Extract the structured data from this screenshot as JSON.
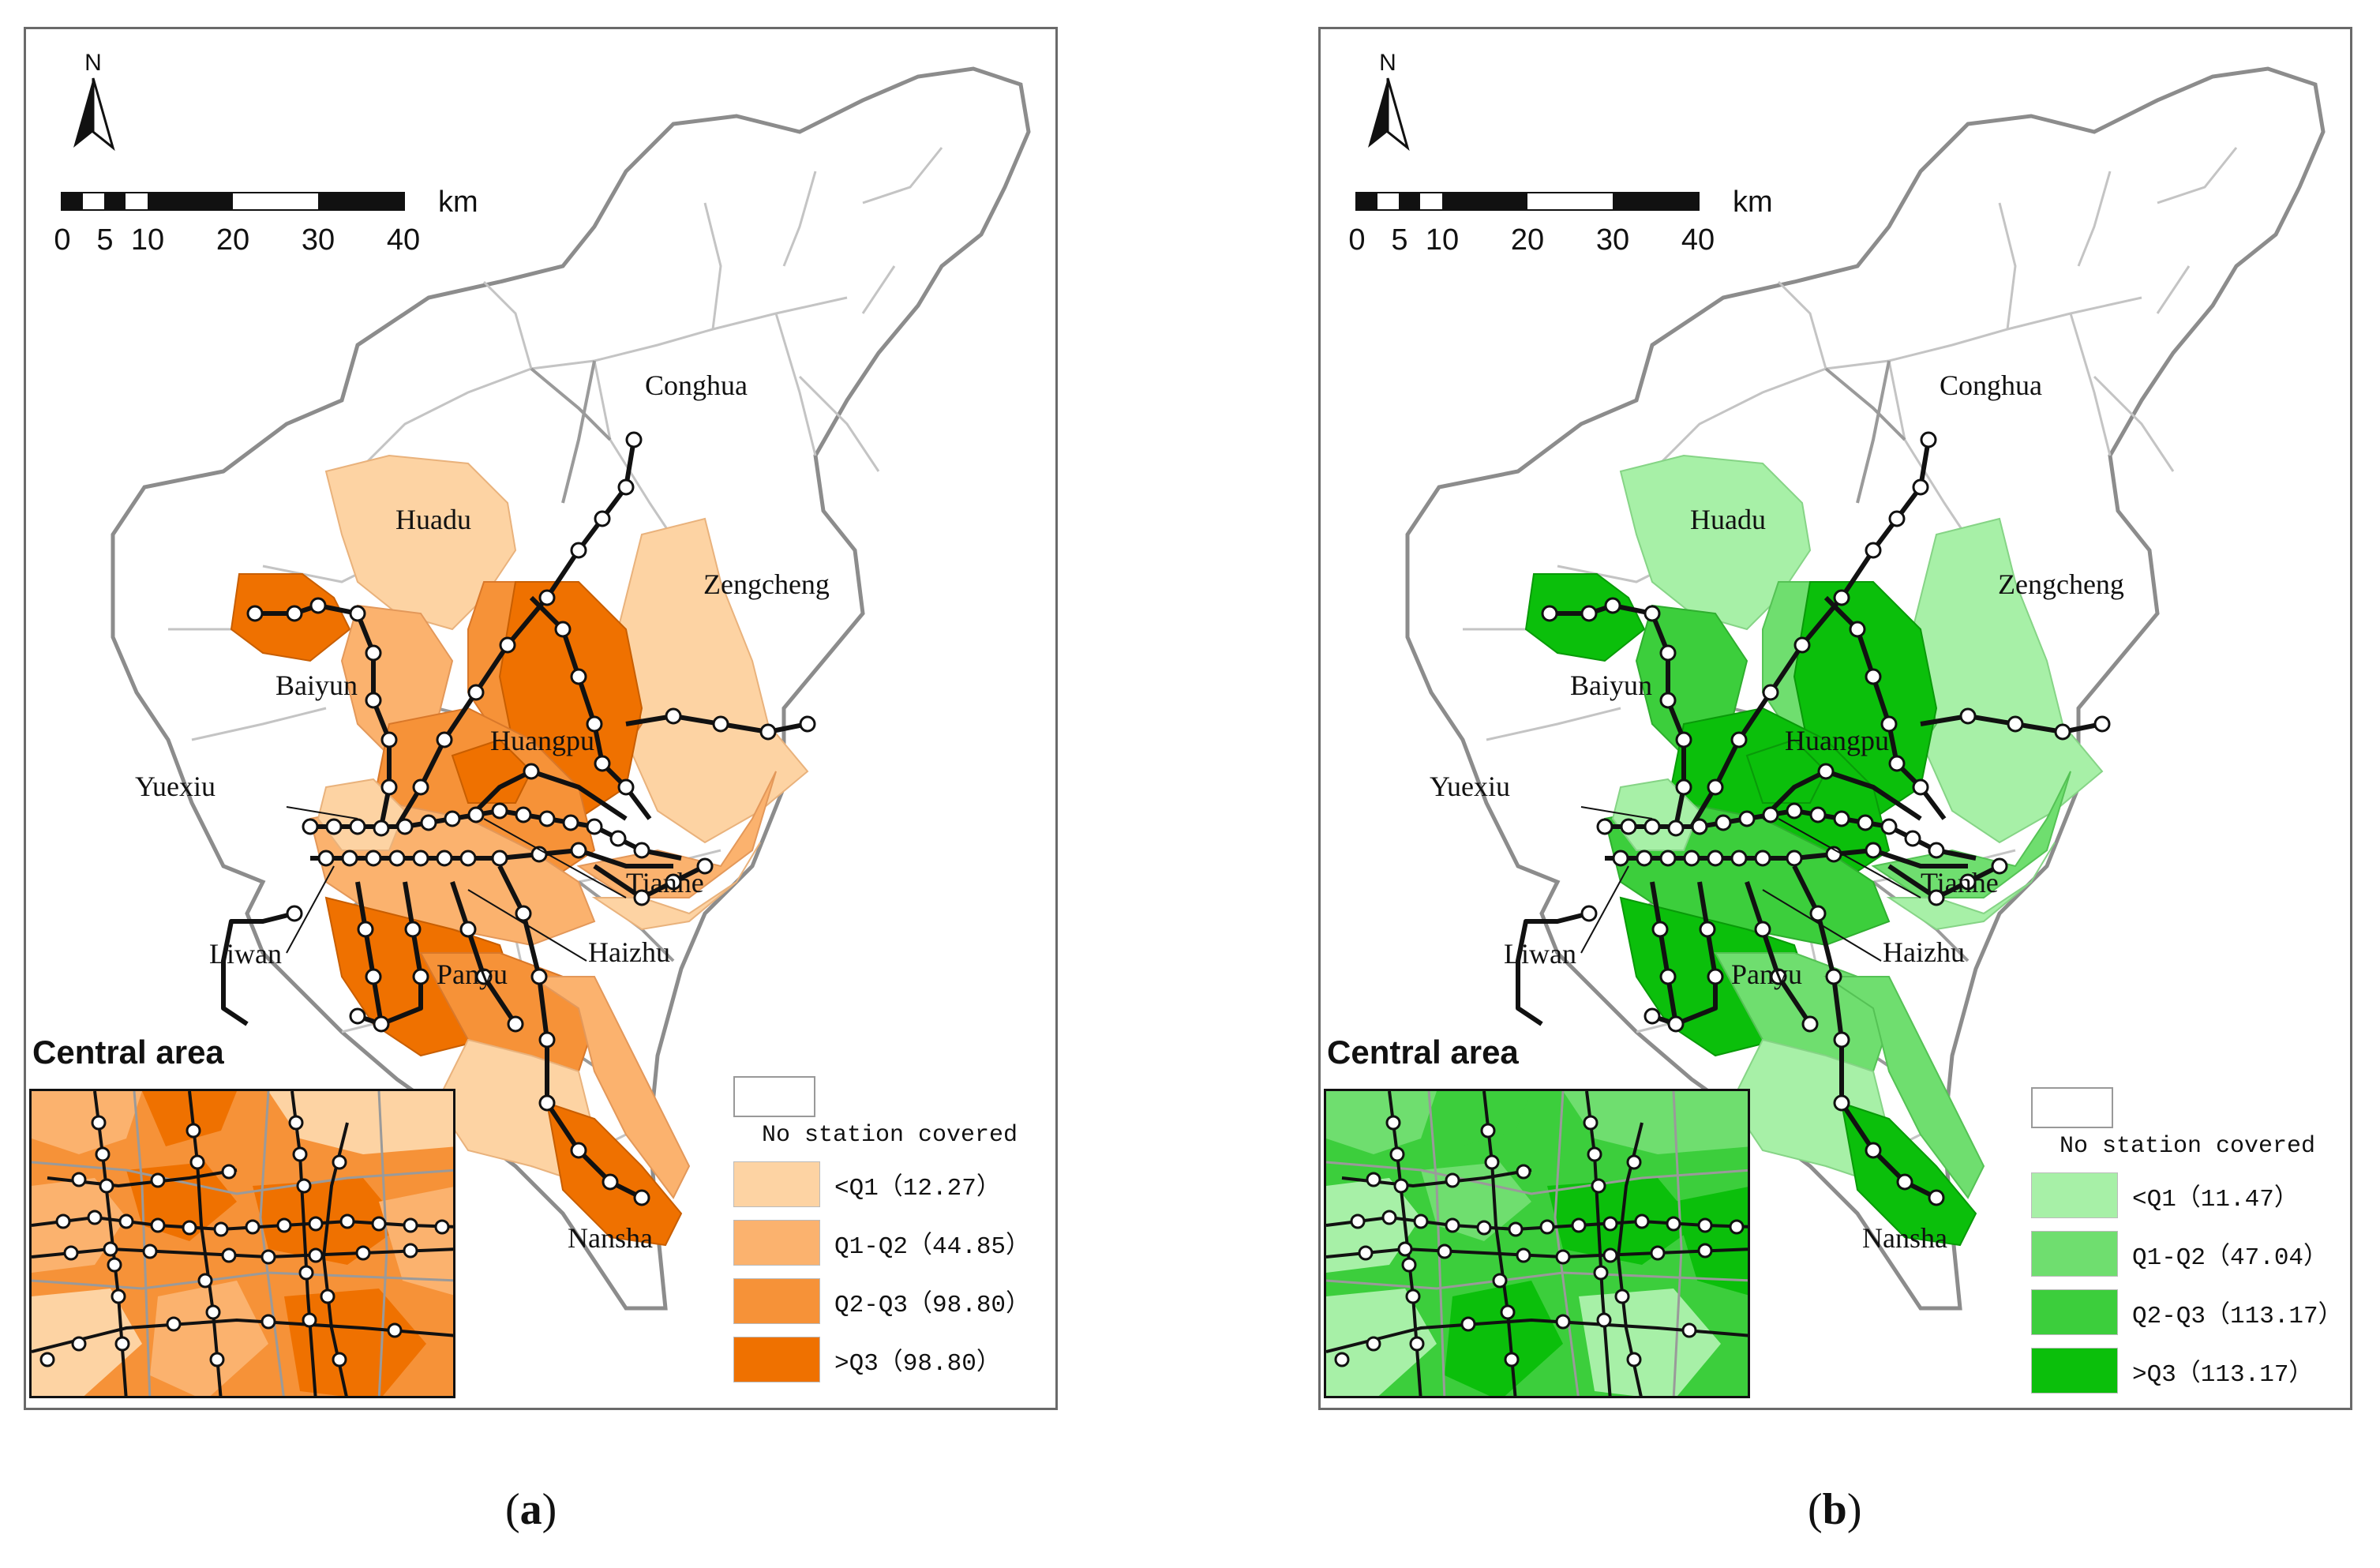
{
  "colors": {
    "a": [
      "#fdd3a3",
      "#fbb26e",
      "#f69238",
      "#ef7100"
    ],
    "b": [
      "#a7f0a7",
      "#6fde6f",
      "#3cce3c",
      "#0bbf0b"
    ],
    "boundary": "#8c8c8c",
    "metro_line": "#111111",
    "station": "#ffffff"
  },
  "north_label": "N",
  "scale": {
    "unit": "km",
    "ticks": [
      "0",
      "5",
      "10",
      "20",
      "30",
      "40"
    ]
  },
  "districts": {
    "conghua": "Conghua",
    "huadu": "Huadu",
    "zengcheng": "Zengcheng",
    "baiyun": "Baiyun",
    "huangpu": "Huangpu",
    "yuexiu": "Yuexiu",
    "tianhe": "Tianhe",
    "liwan": "Liwan",
    "haizhu": "Haizhu",
    "panyu": "Panyu",
    "nansha": "Nansha"
  },
  "central_area_title": "Central area",
  "legend_no_station": "No station covered",
  "panel_a": {
    "caption_letter": "a",
    "legend": [
      "<Q1（12.27）",
      "Q1-Q2（44.85）",
      "Q2-Q3（98.80）",
      ">Q3（98.80）"
    ]
  },
  "panel_b": {
    "caption_letter": "b",
    "legend": [
      "<Q1（11.47）",
      "Q1-Q2（47.04）",
      "Q2-Q3（113.17）",
      ">Q3（113.17）"
    ]
  }
}
